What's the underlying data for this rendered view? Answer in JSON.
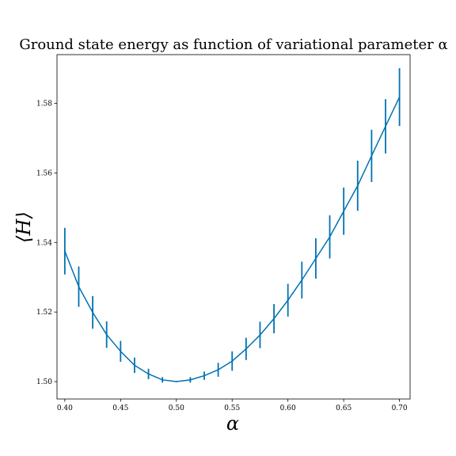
{
  "chart_data": {
    "type": "line",
    "title": "Ground state energy as function of variational parameter α",
    "xlabel": "α",
    "ylabel": "⟨H⟩",
    "xlim": [
      0.393,
      0.7095
    ],
    "ylim": [
      1.495,
      1.594
    ],
    "xticks": [
      "0.40",
      "0.45",
      "0.50",
      "0.55",
      "0.60",
      "0.65",
      "0.70"
    ],
    "yticks": [
      "1.50",
      "1.52",
      "1.54",
      "1.56",
      "1.58"
    ],
    "grid": false,
    "line_color": "#0072b2",
    "series": [
      {
        "x": [
          0.4,
          0.4125,
          0.425,
          0.4375,
          0.45,
          0.4625,
          0.475,
          0.4875,
          0.5,
          0.5125,
          0.525,
          0.5375,
          0.55,
          0.5625,
          0.575,
          0.5875,
          0.6,
          0.6125,
          0.625,
          0.6375,
          0.65,
          0.6625,
          0.675,
          0.6875,
          0.7
        ],
        "y": [
          1.5375,
          1.5273,
          1.5199,
          1.5135,
          1.5087,
          1.5047,
          1.5022,
          1.5005,
          1.5,
          1.5005,
          1.5017,
          1.5034,
          1.5059,
          1.5094,
          1.5134,
          1.5181,
          1.5234,
          1.5292,
          1.5354,
          1.5416,
          1.549,
          1.5563,
          1.5649,
          1.5734,
          1.5818
        ],
        "err": [
          0.0067,
          0.0058,
          0.0047,
          0.0038,
          0.003,
          0.0022,
          0.0015,
          0.0008,
          0.0,
          0.0008,
          0.0012,
          0.002,
          0.0028,
          0.0032,
          0.0038,
          0.0042,
          0.0047,
          0.0053,
          0.0058,
          0.0062,
          0.0068,
          0.0072,
          0.0075,
          0.0078,
          0.0083
        ]
      }
    ]
  }
}
